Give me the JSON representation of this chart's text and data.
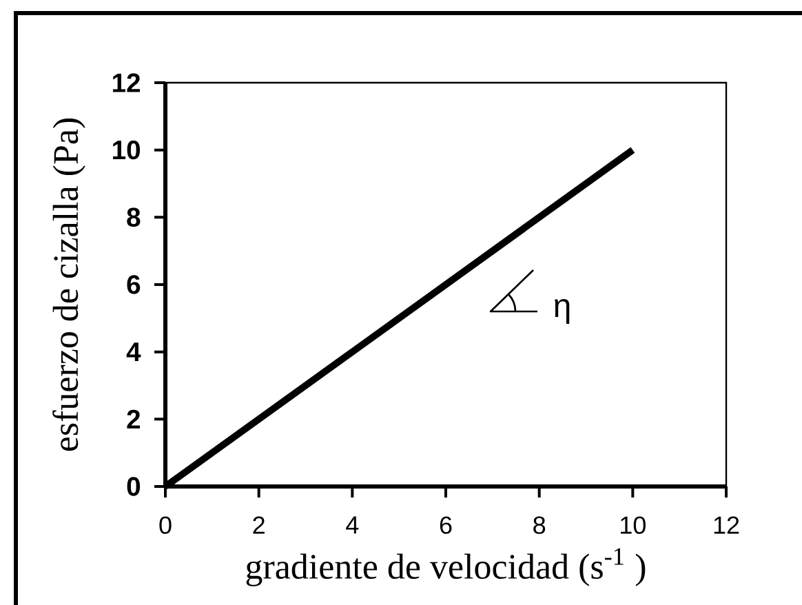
{
  "chart_data": {
    "type": "line",
    "xlabel": "gradiente de velocidad (s$^{-1}$ )",
    "ylabel": "esfuerzo de cizalla (Pa)",
    "x": [
      0,
      10
    ],
    "values": [
      0,
      10
    ],
    "color": "#000000",
    "marker": "none",
    "line_style": "solid",
    "xlim": [
      0,
      12
    ],
    "ylim": [
      0,
      12
    ],
    "xticks": [
      0,
      2,
      4,
      6,
      8,
      10,
      12
    ],
    "yticks": [
      0,
      2,
      4,
      6,
      8,
      10,
      12
    ],
    "annotations": [
      "η"
    ]
  }
}
